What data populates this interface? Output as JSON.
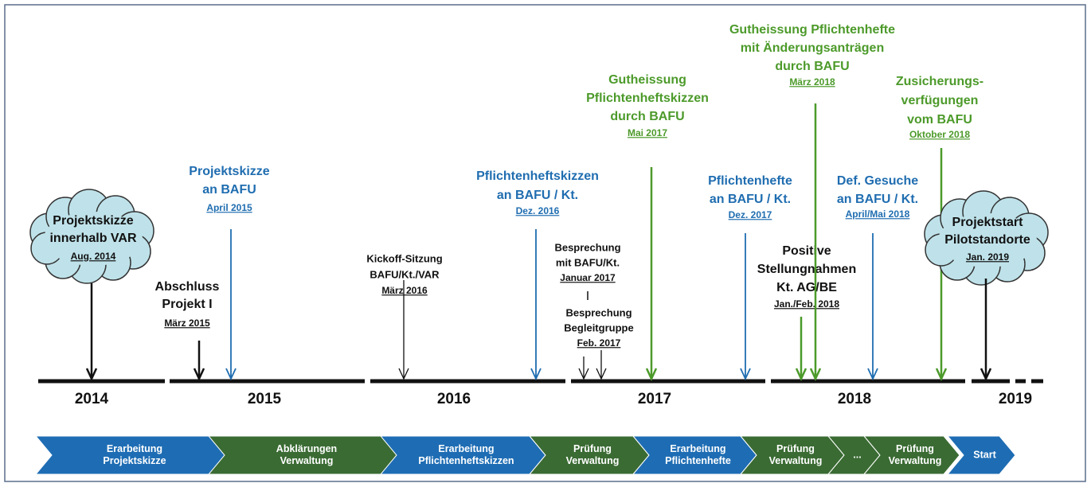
{
  "years": [
    "2014",
    "2015",
    "2016",
    "2017",
    "2018",
    "2019"
  ],
  "events": [
    {
      "lines": [
        "Projektskizze",
        "innerhalb VAR"
      ],
      "date": "Aug. 2014",
      "color": "#111111"
    },
    {
      "lines": [
        "Abschluss",
        "Projekt I"
      ],
      "date": "März 2015",
      "color": "#111111"
    },
    {
      "lines": [
        "Projektskizze",
        "an BAFU"
      ],
      "date": "April 2015",
      "color": "#1f6db0"
    },
    {
      "lines": [
        "Kickoff-Sitzung",
        "BAFU/Kt./VAR"
      ],
      "date": "März 2016",
      "color": "#111111"
    },
    {
      "lines": [
        "Pflichtenheftskizzen",
        "an BAFU / Kt."
      ],
      "date": "Dez. 2016",
      "color": "#1f6db0"
    },
    {
      "lines": [
        "Besprechung",
        "mit BAFU/Kt."
      ],
      "date": "Januar 2017",
      "color": "#111111"
    },
    {
      "lines": [
        "Besprechung",
        "Begleitgruppe"
      ],
      "date": "Feb. 2017",
      "color": "#111111"
    },
    {
      "lines": [
        "Gutheissung",
        "Pflichtenheftskizzen",
        "durch BAFU"
      ],
      "date": "Mai 2017",
      "color": "#4c9a2a"
    },
    {
      "lines": [
        "Pflichtenhefte",
        "an BAFU / Kt."
      ],
      "date": "Dez. 2017",
      "color": "#1f6db0"
    },
    {
      "lines": [
        "Positive",
        "Stellungnahmen",
        "Kt. AG/BE"
      ],
      "date": "Jan./Feb. 2018",
      "color": "#111111"
    },
    {
      "lines": [
        "Gutheissung Pflichtenhefte",
        "mit Änderungsanträgen",
        "durch BAFU"
      ],
      "date": "März 2018",
      "color": "#4c9a2a"
    },
    {
      "lines": [
        "Def. Gesuche",
        "an BAFU / Kt."
      ],
      "date": "April/Mai 2018",
      "color": "#1f6db0"
    },
    {
      "lines": [
        "Zusicherungs-",
        "verfügungen",
        "vom BAFU"
      ],
      "date": "Oktober 2018",
      "color": "#4c9a2a"
    },
    {
      "lines": [
        "Projektstart",
        "Pilotstandorte"
      ],
      "date": "Jan. 2019",
      "color": "#111111"
    }
  ],
  "phases": [
    {
      "lines": [
        "Erarbeitung",
        "Projektskizze"
      ],
      "color": "#1e6db4"
    },
    {
      "lines": [
        "Abklärungen",
        "Verwaltung"
      ],
      "color": "#3a6b33"
    },
    {
      "lines": [
        "Erarbeitung",
        "Pflichtenheftskizzen"
      ],
      "color": "#1e6db4"
    },
    {
      "lines": [
        "Prüfung",
        "Verwaltung"
      ],
      "color": "#3a6b33"
    },
    {
      "lines": [
        "Erarbeitung",
        "Pflichtenhefte"
      ],
      "color": "#1e6db4"
    },
    {
      "lines": [
        "Prüfung",
        "Verwaltung"
      ],
      "color": "#3a6b33"
    },
    {
      "lines": [
        "..."
      ],
      "color": "#3a6b33"
    },
    {
      "lines": [
        "Prüfung",
        "Verwaltung"
      ],
      "color": "#3a6b33"
    },
    {
      "lines": [
        "Start"
      ],
      "color": "#1e6db4"
    }
  ]
}
